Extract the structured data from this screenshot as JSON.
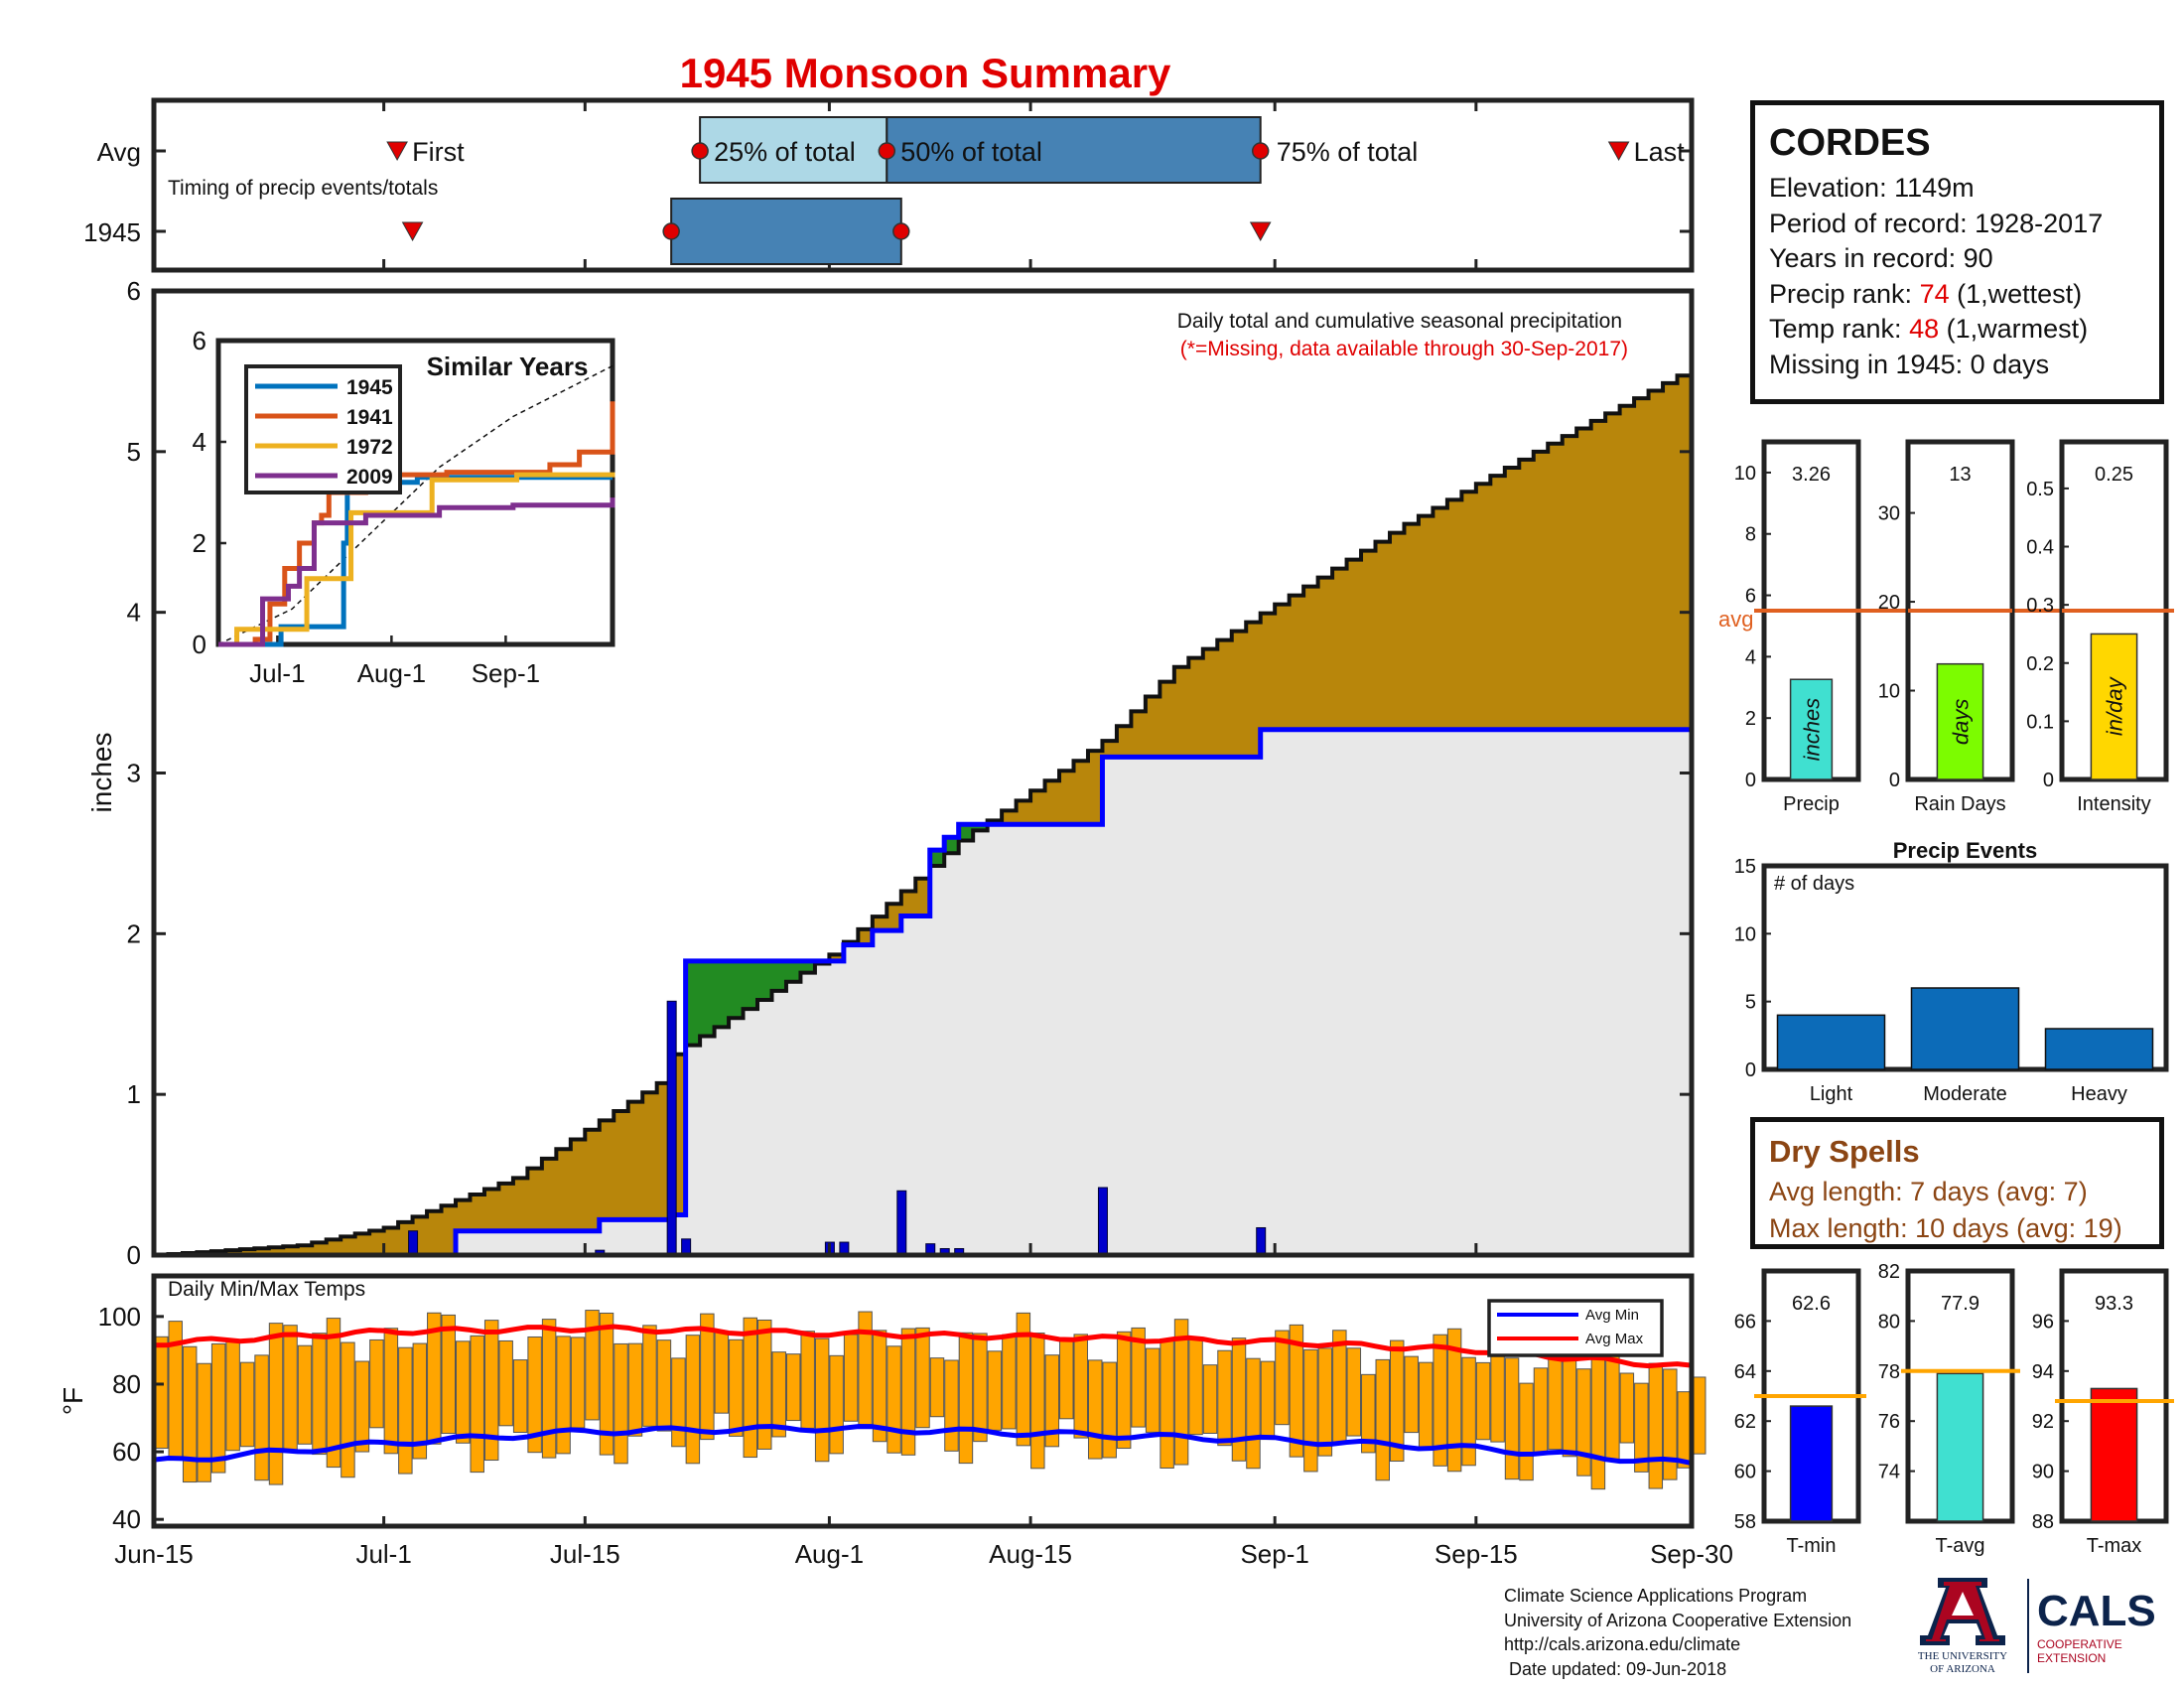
{
  "title": "1945 Monsoon Summary",
  "colors": {
    "title": "#e00000",
    "cum_fill": "#b8860b",
    "normal_fill": "#e8e8e8",
    "ahead_fill": "#228b22",
    "obs_line": "#0000ff",
    "bar_blue": "#0000cc",
    "temp_bar": "#ffa500",
    "avg_min": "#0000ff",
    "avg_max": "#ff0000",
    "avg_line": "#ffa500",
    "precip_avg": "#e06020",
    "light_blue": "#add8e6",
    "steel_blue": "#4682b4",
    "event_blue": "#0c6bb8",
    "precip_bar": "#40e0d0",
    "days_bar": "#7cfc00",
    "intensity_bar": "#ffd700",
    "tmin_bar": "#0000ff",
    "tavg_bar": "#40e0d0",
    "tmax_bar": "#ff0000",
    "dry_text": "#8b4513"
  },
  "timing": {
    "row_labels": [
      "Avg",
      "1945"
    ],
    "note": "Timing of precip events/totals",
    "avg_labels": {
      "first": "First",
      "q25": "25% of total",
      "q50": "50% of total",
      "q75": "75% of total",
      "last": "Last"
    }
  },
  "station": {
    "name": "CORDES",
    "elevation": "Elevation: 1149m",
    "period": "Period of record: 1928-2017",
    "years": "Years in record: 90",
    "precip_rank_label": "Precip rank: ",
    "precip_rank_value": "74",
    "precip_rank_note": " (1,wettest)",
    "temp_rank_label": "Temp rank: ",
    "temp_rank_value": "48",
    "temp_rank_note": " (1,warmest)",
    "missing": "Missing in 1945: 0 days"
  },
  "main_panel": {
    "annotation": "Daily total and cumulative seasonal precipitation",
    "missing_note": "(*=Missing, data available through 30-Sep-2017)",
    "ylabel": "inches"
  },
  "inset": {
    "title": "Similar Years"
  },
  "temp_panel": {
    "title": "Daily Min/Max Temps",
    "ylabel": "°F",
    "legend": [
      "Avg Min",
      "Avg Max"
    ]
  },
  "precip_events": {
    "title": "Precip Events",
    "ylabel": "# of days"
  },
  "dry_spells": {
    "title": "Dry Spells",
    "avg_length": "Avg length: 7 days (avg: 7)",
    "max_length": "Max length: 10 days (avg: 19)"
  },
  "footer": [
    "Climate Science Applications Program",
    "University of Arizona Cooperative Extension",
    "http://cals.arizona.edu/climate",
    " Date updated: 09-Jun-2018"
  ],
  "logo": {
    "ua_line1": "THE UNIVERSITY",
    "ua_line2": "OF ARIZONA",
    "cals": "CALS",
    "coop1": "COOPERATIVE",
    "coop2": "EXTENSION"
  },
  "chart_data": [
    {
      "type": "timeline",
      "title": "Timing of precip events/totals",
      "rows": [
        "Avg",
        "1945"
      ],
      "avg": {
        "first": "Jul-2",
        "q25": "Jul-23",
        "q50": "Aug-5",
        "q75": "Aug-31",
        "last": "Sep-25"
      },
      "y1945": {
        "first": "Jul-3",
        "q25": "Jul-21",
        "q50": "Aug-6",
        "q75": "Aug-31"
      }
    },
    {
      "type": "area",
      "title": "Daily total and cumulative seasonal precipitation",
      "x_ticks": [
        "Jun-15",
        "Jul-1",
        "Jul-15",
        "Aug-1",
        "Aug-15",
        "Sep-1",
        "Sep-15",
        "Sep-30"
      ],
      "xlim": [
        "Jun-15",
        "Sep-30"
      ],
      "ylabel": "inches",
      "ylim": [
        0,
        6
      ],
      "y_ticks": [
        0,
        1,
        2,
        3,
        4,
        5,
        6
      ],
      "series": [
        {
          "name": "avg cumulative",
          "x": [
            "Jun-15",
            "Jun-25",
            "Jul-1",
            "Jul-10",
            "Jul-15",
            "Jul-20",
            "Jul-21",
            "Aug-1",
            "Aug-10",
            "Aug-20",
            "Aug-25",
            "Sep-1",
            "Sep-10",
            "Sep-20",
            "Sep-30"
          ],
          "values": [
            0,
            0.06,
            0.17,
            0.48,
            0.78,
            1.07,
            1.25,
            1.87,
            2.58,
            3.2,
            3.66,
            4.05,
            4.55,
            5.05,
            5.52
          ]
        },
        {
          "name": "1945 cumulative",
          "x": [
            "Jun-15",
            "Jul-3",
            "Jul-6",
            "Jul-16",
            "Jul-21",
            "Jul-22",
            "Aug-2",
            "Aug-4",
            "Aug-6",
            "Aug-8",
            "Aug-9",
            "Aug-10",
            "Aug-20",
            "Aug-31",
            "Sep-30"
          ],
          "values": [
            0,
            0,
            0.15,
            0.22,
            0.25,
            1.83,
            1.93,
            2.02,
            2.11,
            2.52,
            2.6,
            2.68,
            3.1,
            3.27,
            3.27
          ]
        }
      ],
      "daily": {
        "x": [
          "Jul-3",
          "Jul-16",
          "Jul-21",
          "Jul-22",
          "Aug-1",
          "Aug-2",
          "Aug-6",
          "Aug-8",
          "Aug-9",
          "Aug-10",
          "Aug-20",
          "Aug-31"
        ],
        "values": [
          0.15,
          0.03,
          1.58,
          0.1,
          0.08,
          0.08,
          0.4,
          0.07,
          0.04,
          0.04,
          0.42,
          0.17
        ]
      }
    },
    {
      "type": "line",
      "title": "Similar Years",
      "x_ticks": [
        "Jul-1",
        "Aug-1",
        "Sep-1"
      ],
      "ylim": [
        0,
        6
      ],
      "y_ticks": [
        0,
        2,
        4,
        6
      ],
      "series": [
        {
          "name": "1945",
          "color": "#0072bd",
          "x": [
            0,
            16,
            17,
            34,
            35,
            53,
            54,
            107
          ],
          "values": [
            0,
            0,
            0.35,
            2.0,
            3.2,
            3.2,
            3.3,
            3.3
          ]
        },
        {
          "name": "1941",
          "color": "#d95319",
          "x": [
            0,
            10,
            14,
            18,
            22,
            26,
            28,
            30,
            40,
            44,
            62,
            90,
            98,
            106,
            107
          ],
          "values": [
            0,
            0.1,
            0.8,
            1.5,
            2.0,
            2.4,
            2.55,
            3.0,
            3.2,
            3.35,
            3.4,
            3.55,
            3.8,
            3.8,
            4.8
          ]
        },
        {
          "name": "1972",
          "color": "#edb120",
          "x": [
            0,
            5,
            20,
            24,
            32,
            36,
            47,
            58,
            62,
            81,
            107
          ],
          "values": [
            0,
            0.3,
            0.3,
            1.3,
            1.3,
            2.6,
            2.6,
            3.25,
            3.25,
            3.35,
            3.4
          ]
        },
        {
          "name": "2009",
          "color": "#7e2f8e",
          "x": [
            0,
            12,
            19,
            22,
            26,
            40,
            60,
            80,
            107
          ],
          "values": [
            0,
            0.9,
            1.15,
            1.5,
            2.4,
            2.55,
            2.7,
            2.75,
            2.9
          ]
        }
      ],
      "avg_line": {
        "x": [
          0,
          20,
          40,
          60,
          80,
          107
        ],
        "values": [
          0,
          0.7,
          2.1,
          3.5,
          4.5,
          5.5
        ]
      }
    },
    {
      "type": "bar",
      "title": "Daily Min/Max Temps",
      "x_ticks": [
        "Jun-15",
        "Jul-1",
        "Jul-15",
        "Aug-1",
        "Aug-15",
        "Sep-1",
        "Sep-15",
        "Sep-30"
      ],
      "ylabel": "°F",
      "ylim": [
        38,
        112
      ],
      "y_ticks": [
        40,
        60,
        80,
        100
      ],
      "series": [
        {
          "name": "Avg Min",
          "x": [
            "Jun-15",
            "Jul-1",
            "Jul-15",
            "Aug-1",
            "Aug-15",
            "Sep-1",
            "Sep-15",
            "Sep-30"
          ],
          "values": [
            57,
            62.5,
            66,
            67,
            65.5,
            63.5,
            61,
            56.5
          ]
        },
        {
          "name": "Avg Max",
          "x": [
            "Jun-15",
            "Jul-1",
            "Jul-15",
            "Aug-1",
            "Aug-15",
            "Sep-1",
            "Sep-15",
            "Sep-30"
          ],
          "values": [
            92,
            95.5,
            96.5,
            95,
            94,
            92.5,
            90,
            85
          ]
        }
      ],
      "range_bars": "daily min/max bars, approx. 55-95°F in June, 60-98°F in July, 62-95°F in August, 50-90°F in September"
    },
    {
      "type": "bar",
      "title": "Precip",
      "categories": [
        "Precip"
      ],
      "values": [
        3.26
      ],
      "labels": [
        "3.26"
      ],
      "ylim": [
        0,
        11
      ],
      "y_ticks": [
        0,
        2,
        4,
        6,
        8,
        10
      ],
      "avg": 5.5,
      "avg_label": "avg",
      "bar_label": "inches"
    },
    {
      "type": "bar",
      "title": "Rain Days",
      "categories": [
        "Rain Days"
      ],
      "values": [
        13
      ],
      "labels": [
        "13"
      ],
      "ylim": [
        0,
        38
      ],
      "y_ticks": [
        0,
        10,
        20,
        30
      ],
      "avg": 19,
      "bar_label": "days"
    },
    {
      "type": "bar",
      "title": "Intensity",
      "categories": [
        "Intensity"
      ],
      "values": [
        0.25
      ],
      "labels": [
        "0.25"
      ],
      "ylim": [
        0,
        0.58
      ],
      "y_ticks": [
        0,
        0.1,
        0.2,
        0.3,
        0.4,
        0.5
      ],
      "avg": 0.29,
      "bar_label": "in/day"
    },
    {
      "type": "bar",
      "title": "Precip Events",
      "ylabel": "# of days",
      "categories": [
        "Light",
        "Moderate",
        "Heavy"
      ],
      "values": [
        4,
        6,
        3
      ],
      "ylim": [
        0,
        15
      ],
      "y_ticks": [
        0,
        5,
        10,
        15
      ]
    },
    {
      "type": "bar",
      "title": "T-min",
      "categories": [
        "T-min"
      ],
      "values": [
        62.6
      ],
      "labels": [
        "62.6"
      ],
      "ylim": [
        58,
        68
      ],
      "y_ticks": [
        58,
        60,
        62,
        64,
        66
      ],
      "avg": 63
    },
    {
      "type": "bar",
      "title": "T-avg",
      "categories": [
        "T-avg"
      ],
      "values": [
        77.9
      ],
      "labels": [
        "77.9"
      ],
      "ylim": [
        72,
        82
      ],
      "y_ticks": [
        74,
        76,
        78,
        80,
        82
      ],
      "avg": 78
    },
    {
      "type": "bar",
      "title": "T-max",
      "categories": [
        "T-max"
      ],
      "values": [
        93.3
      ],
      "labels": [
        "93.3"
      ],
      "ylim": [
        88,
        98
      ],
      "y_ticks": [
        88,
        90,
        92,
        94,
        96
      ],
      "avg": 92.8
    }
  ]
}
